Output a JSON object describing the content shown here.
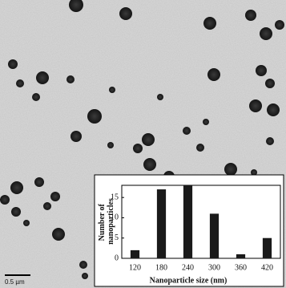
{
  "scale_bar": "0.5 µm",
  "chart_data": {
    "type": "bar",
    "x_label": "Nanoparticle size (nm)",
    "y_label": [
      "Number of",
      "nanoparticles"
    ],
    "categories": [
      120,
      180,
      240,
      300,
      360,
      420
    ],
    "values": [
      2,
      17,
      18,
      11,
      1,
      5
    ],
    "color": "#1a1a1a",
    "ylim": [
      0,
      18
    ],
    "yticks": [
      0,
      5,
      10,
      15
    ],
    "grid": false
  }
}
